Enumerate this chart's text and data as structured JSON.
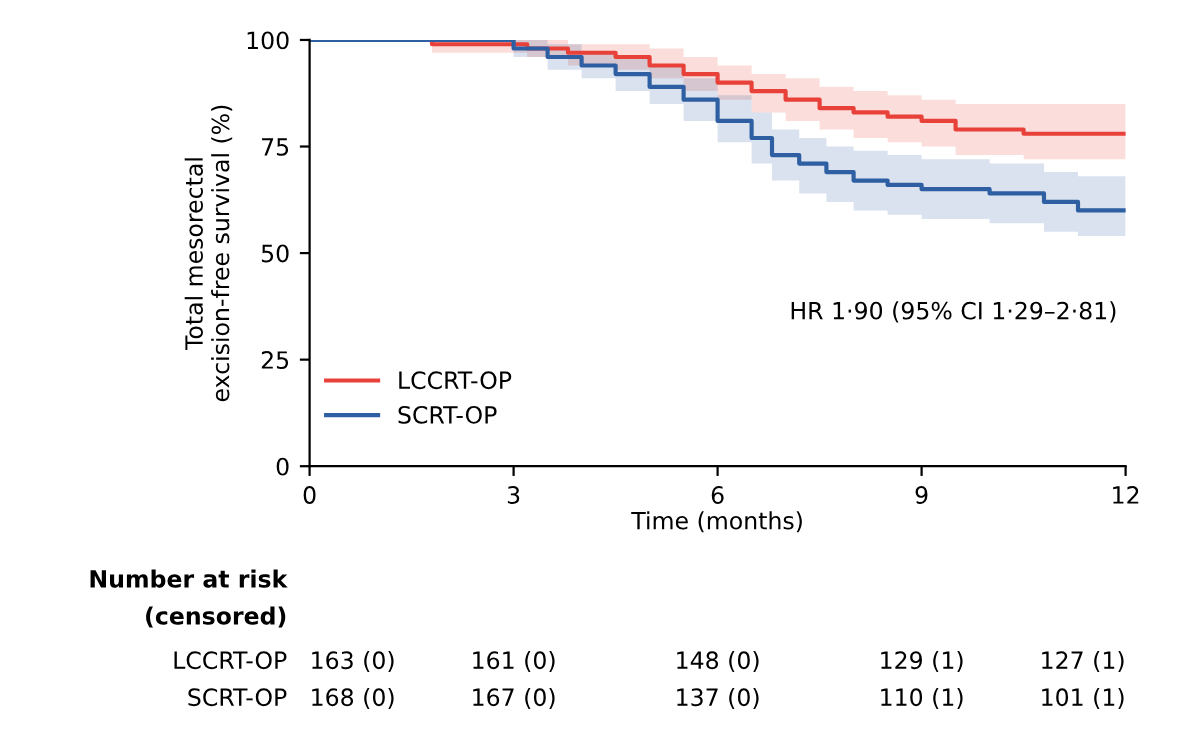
{
  "chart_data": {
    "type": "step",
    "xlabel": "Time (months)",
    "ylabel": "Total mesorectal\nexcision-free survival (%)",
    "xlim": [
      0,
      12
    ],
    "xticks": [
      0,
      3,
      6,
      9,
      12
    ],
    "ylim": [
      0,
      100
    ],
    "yticks": [
      0,
      25,
      50,
      75,
      100
    ],
    "grid": false,
    "legend": "bottom left",
    "series": [
      {
        "name": "LCCRT-OP",
        "color": "#e8413a",
        "x": [
          0,
          1.8,
          3.2,
          3.8,
          4.5,
          5,
          5.5,
          6,
          6.5,
          7,
          7.5,
          8,
          8.5,
          9,
          9.5,
          10.5,
          12
        ],
        "values": [
          100,
          99,
          98,
          97,
          96,
          94,
          92,
          90,
          88,
          86,
          84,
          83,
          82,
          81,
          79,
          78,
          78
        ],
        "lower": [
          100,
          97,
          96,
          94,
          93,
          91,
          88,
          86,
          83,
          81,
          79,
          77,
          76,
          75,
          73,
          72,
          72
        ],
        "upper": [
          100,
          100,
          100,
          99,
          99,
          98,
          96,
          94,
          92,
          91,
          89,
          88,
          87,
          86,
          85,
          85,
          85
        ]
      },
      {
        "name": "SCRT-OP",
        "color": "#2e5fa3",
        "x": [
          0,
          3,
          3.5,
          4,
          4.5,
          5,
          5.5,
          6,
          6.5,
          6.8,
          7.2,
          7.6,
          8,
          8.5,
          9,
          10,
          10.8,
          11.3,
          12
        ],
        "values": [
          100,
          98,
          96,
          94,
          92,
          89,
          86,
          81,
          77,
          73,
          71,
          69,
          67,
          66,
          65,
          64,
          62,
          60,
          60
        ],
        "lower": [
          100,
          96,
          93,
          91,
          88,
          85,
          81,
          76,
          71,
          67,
          64,
          62,
          60,
          59,
          58,
          57,
          55,
          54,
          54
        ],
        "upper": [
          100,
          100,
          99,
          97,
          96,
          94,
          91,
          87,
          83,
          79,
          77,
          75,
          74,
          73,
          72,
          71,
          69,
          68,
          68
        ]
      }
    ],
    "annotations": [
      "HR 1·90 (95% CI 1·29–2·81)",
      "Number at risk",
      "(censored)",
      "LCCRT-OP",
      "163 (0)",
      "161 (0)",
      "148 (0)",
      "129 (1)",
      "127 (1)",
      "SCRT-OP",
      "168 (0)",
      "167 (0)",
      "137 (0)",
      "110 (1)",
      "101 (1)"
    ]
  }
}
